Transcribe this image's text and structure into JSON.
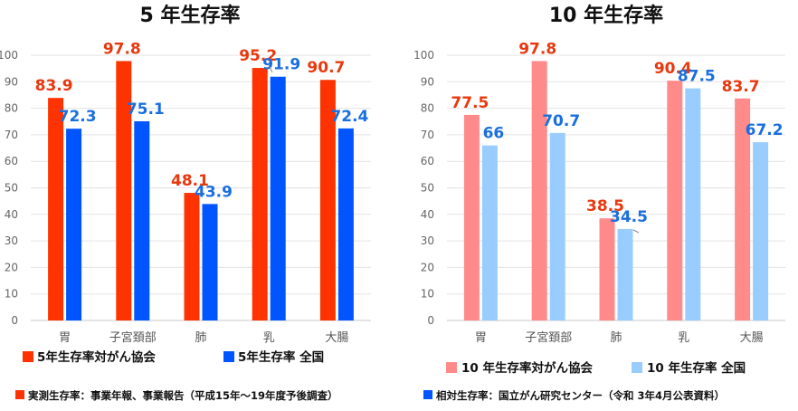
{
  "chart_data": [
    {
      "type": "bar",
      "title": "5 年生存率",
      "categories": [
        "胃",
        "子宮頚部",
        "肺",
        "乳",
        "大腸"
      ],
      "ylim": [
        0,
        100
      ],
      "yticks": [
        0,
        10,
        20,
        30,
        40,
        50,
        60,
        70,
        80,
        90,
        100
      ],
      "grid": true,
      "legend_position": "bottom",
      "series": [
        {
          "name": "5年生存率対がん協会",
          "color": "#ff3300",
          "label_color": "#e8380d",
          "values": [
            83.9,
            97.8,
            48.1,
            95.2,
            90.7
          ],
          "labels": [
            "83.9",
            "97.8",
            "48.1",
            "95.2",
            "90.7"
          ]
        },
        {
          "name": "5年生存率 全国",
          "color": "#0055ff",
          "label_color": "#1a6fe0",
          "values": [
            72.3,
            75.1,
            43.9,
            91.9,
            72.4
          ],
          "labels": [
            "72.3",
            "75.1",
            "43.9",
            "91.9",
            "72.4"
          ]
        }
      ],
      "note": {
        "text": "実測生存率：事業年報、事業報告（平成15年～19年度予後調査）",
        "color": "#ff3300"
      }
    },
    {
      "type": "bar",
      "title": "10 年生存率",
      "categories": [
        "胃",
        "子宮頚部",
        "肺",
        "乳",
        "大腸"
      ],
      "ylim": [
        0,
        100
      ],
      "yticks": [
        0,
        10,
        20,
        30,
        40,
        50,
        60,
        70,
        80,
        90,
        100
      ],
      "grid": true,
      "legend_position": "bottom",
      "series": [
        {
          "name": "10 年生存率対がん協会",
          "color": "#ff8a8a",
          "label_color": "#e8380d",
          "values": [
            77.5,
            97.8,
            38.5,
            90.4,
            83.7
          ],
          "labels": [
            "77.5",
            "97.8",
            "38.5",
            "90.4",
            "83.7"
          ]
        },
        {
          "name": "10 年生存率 全国",
          "color": "#99ccff",
          "label_color": "#1a6fe0",
          "values": [
            66,
            70.7,
            34.5,
            87.5,
            67.2
          ],
          "labels": [
            "66",
            "70.7",
            "34.5",
            "87.5",
            "67.2"
          ]
        }
      ],
      "note": {
        "text": "相対生存率：国立がん研究センター（令和 3年4月公表資料）",
        "color": "#0055ff"
      }
    }
  ]
}
